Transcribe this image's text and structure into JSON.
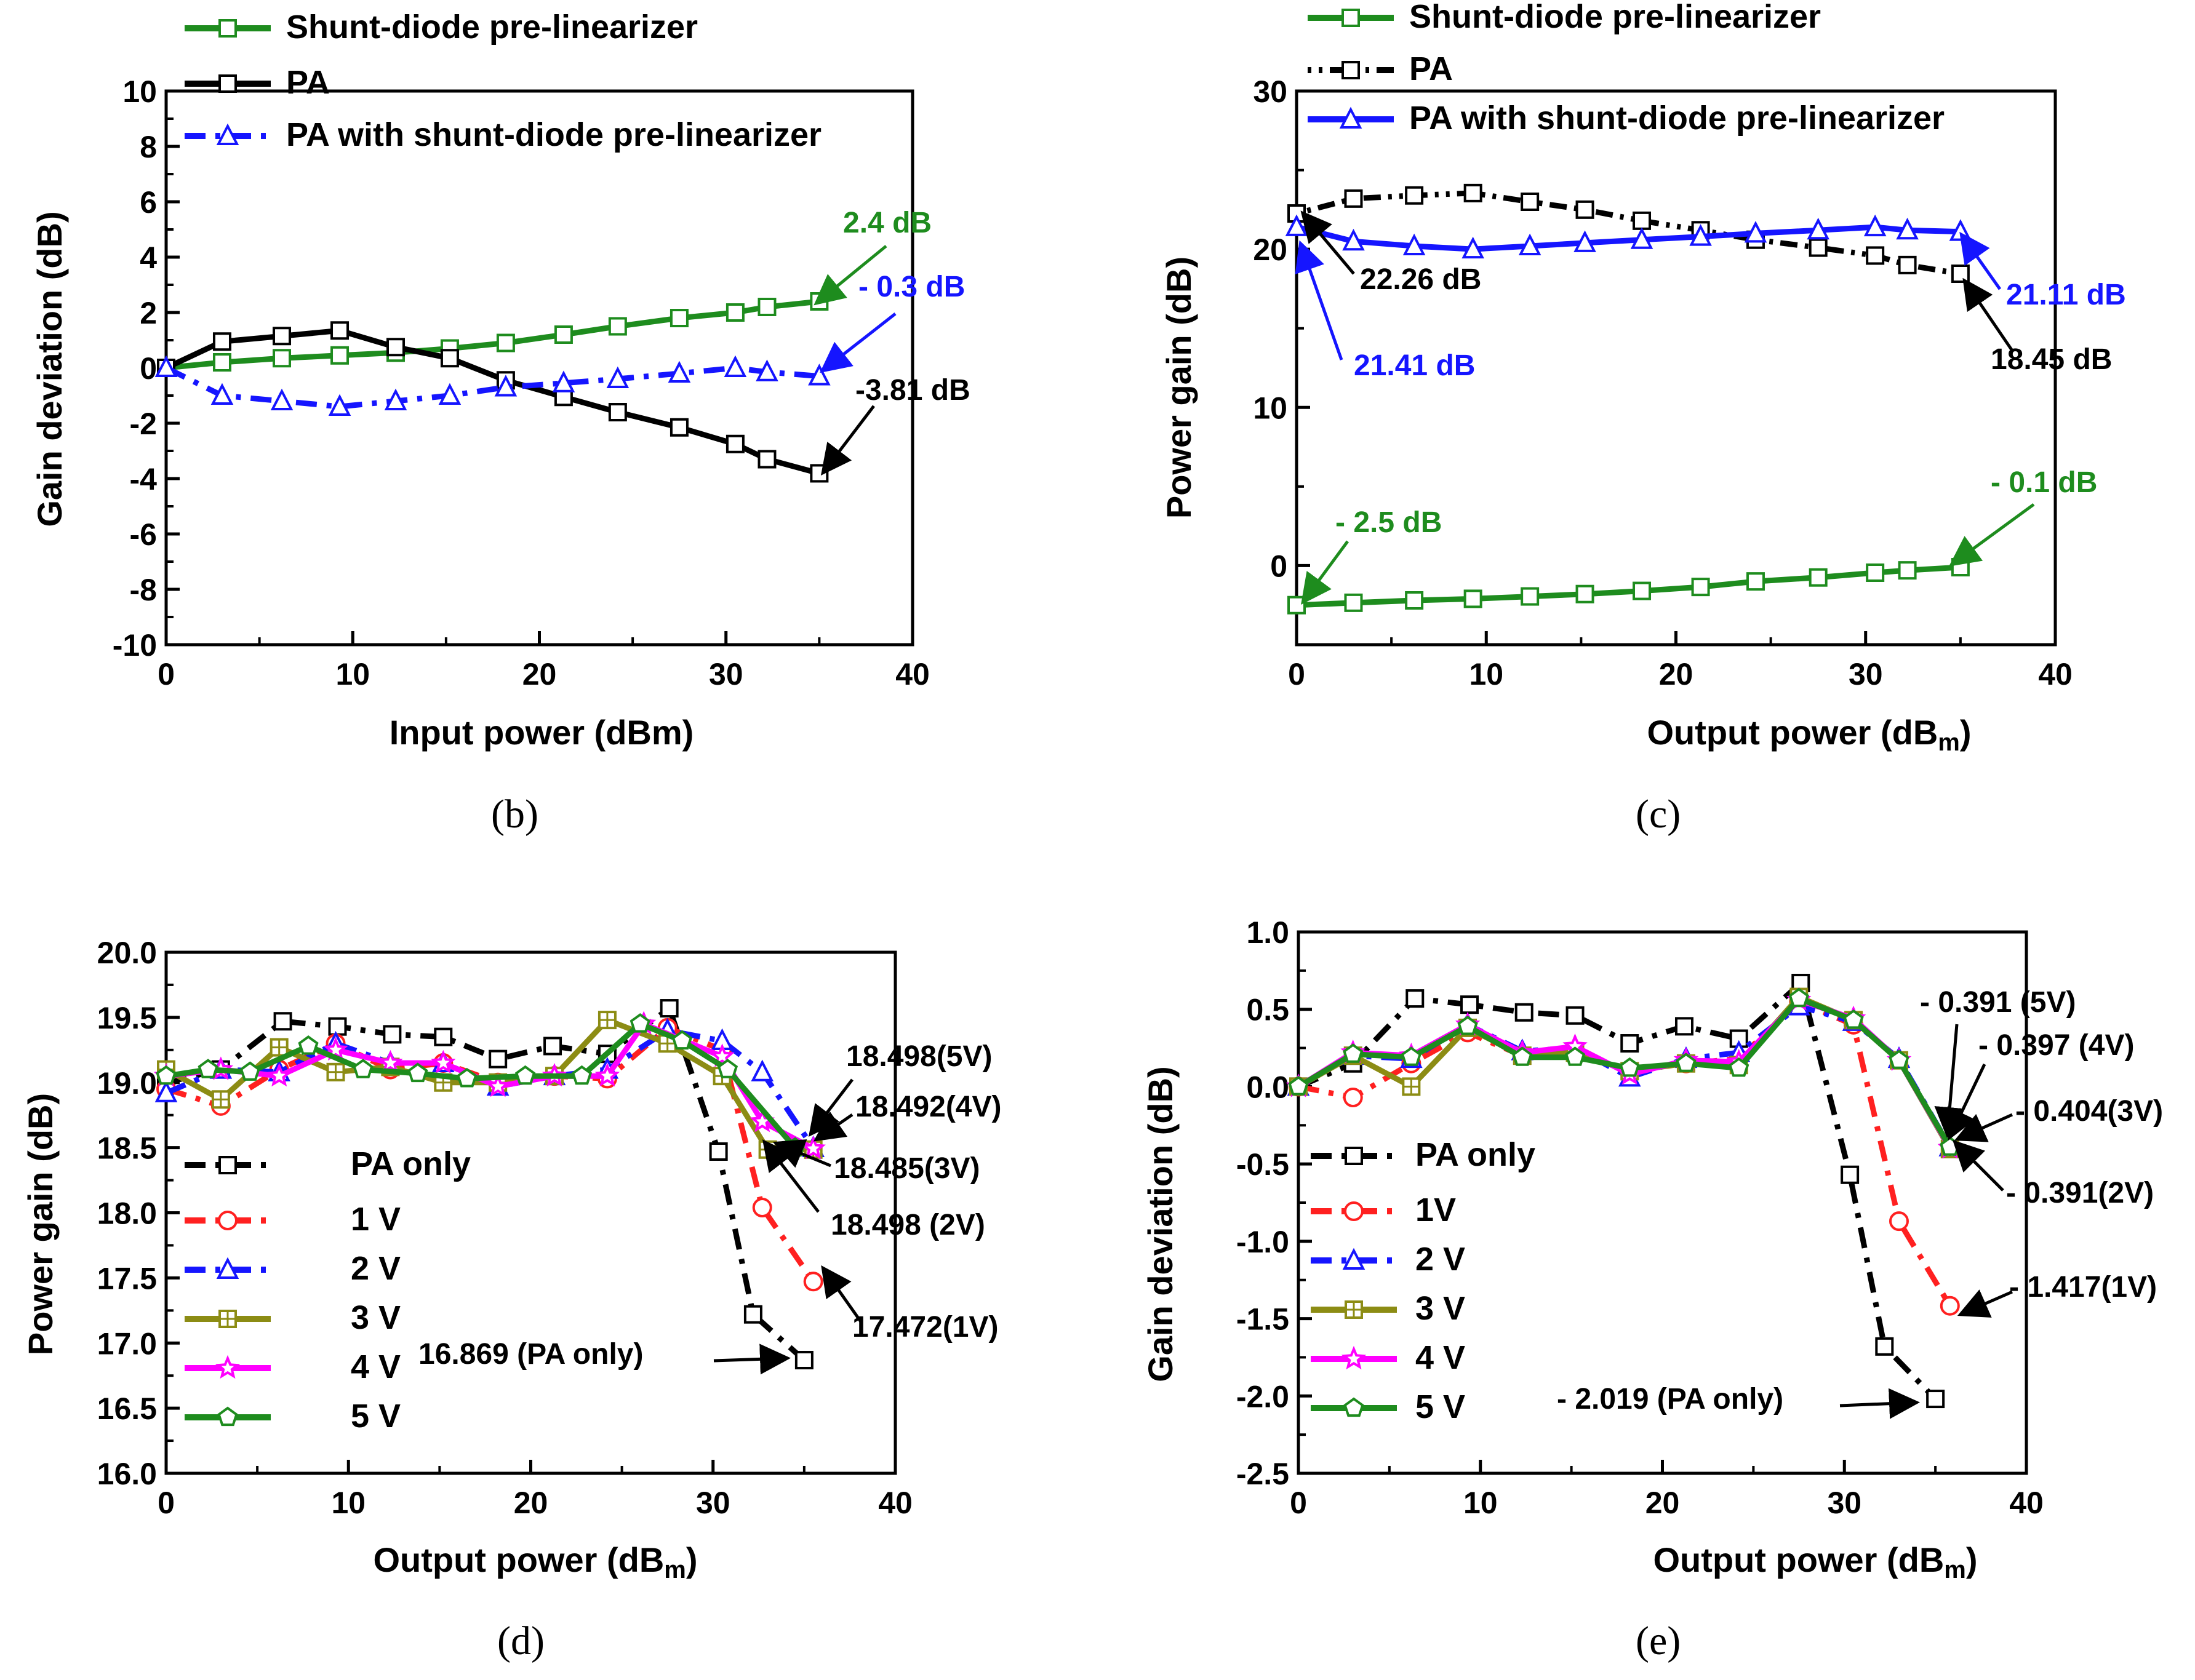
{
  "colors": {
    "pa": "#000000",
    "diode": "#1e8c1e",
    "combined": "#1515ff",
    "v1": "#ff2020",
    "v2": "#1515ff",
    "v3": "#8c8c14",
    "v4": "#ff00ff",
    "v5": "#1e8c1e",
    "marker_fill": "#ffffff"
  },
  "chart_data": [
    {
      "id": "b",
      "type": "line",
      "caption": "(b)",
      "xlabel": "Input power (dBm)",
      "ylabel": "Gain deviation (dB)",
      "xlim": [
        0,
        40
      ],
      "ylim": [
        -10,
        10
      ],
      "xticks": [
        "0",
        "10",
        "20",
        "30",
        "40"
      ],
      "yticks": [
        "-10",
        "-8",
        "-6",
        "-4",
        "-2",
        "0",
        "2",
        "4",
        "6",
        "8",
        "10"
      ],
      "x": [
        0,
        3,
        6.2,
        9.3,
        12.3,
        15.2,
        18.2,
        21.3,
        24.2,
        27.5,
        30.5,
        32.2,
        35
      ],
      "series": [
        {
          "name": "Shunt-diode pre-linearizer",
          "color_key": "diode",
          "marker": "square",
          "dash": "solid",
          "values": [
            0,
            0.2,
            0.35,
            0.45,
            0.55,
            0.7,
            0.9,
            1.2,
            1.5,
            1.8,
            2.0,
            2.2,
            2.4
          ]
        },
        {
          "name": "PA",
          "color_key": "pa",
          "marker": "square",
          "dash": "solid",
          "values": [
            0,
            0.95,
            1.15,
            1.35,
            0.75,
            0.35,
            -0.45,
            -1.05,
            -1.6,
            -2.15,
            -2.75,
            -3.3,
            -3.81
          ]
        },
        {
          "name": "PA with shunt-diode pre-linearizer",
          "color_key": "combined",
          "marker": "triangle",
          "dash": "dashdot",
          "values": [
            0,
            -1.0,
            -1.2,
            -1.4,
            -1.2,
            -1.0,
            -0.7,
            -0.55,
            -0.4,
            -0.2,
            0.0,
            -0.15,
            -0.3
          ]
        }
      ],
      "annotations": [
        {
          "text": "2.4 dB",
          "color_key": "diode"
        },
        {
          "text": "- 0.3 dB",
          "color_key": "combined"
        },
        {
          "text": "-3.81 dB",
          "color_key": "pa"
        }
      ]
    },
    {
      "id": "c",
      "type": "line",
      "caption": "(c)",
      "xlabel": "Output power (dB",
      "xlabel_sub": "m",
      "xlabel_tail": ")",
      "ylabel": "Power gain (dB)",
      "xlim": [
        0,
        40
      ],
      "ylim": [
        -5,
        30
      ],
      "xticks": [
        "0",
        "10",
        "20",
        "30",
        "40"
      ],
      "yticks": [
        "0",
        "10",
        "20",
        "30"
      ],
      "x": [
        0,
        3,
        6.2,
        9.3,
        12.3,
        15.2,
        18.2,
        21.3,
        24.2,
        27.5,
        30.5,
        32.2,
        35
      ],
      "series": [
        {
          "name": "Shunt-diode pre-linearizer",
          "color_key": "diode",
          "marker": "square",
          "dash": "solid",
          "values": [
            -2.5,
            -2.35,
            -2.2,
            -2.1,
            -1.95,
            -1.8,
            -1.6,
            -1.35,
            -1.0,
            -0.75,
            -0.45,
            -0.3,
            -0.1
          ]
        },
        {
          "name": "PA",
          "color_key": "pa",
          "marker": "square",
          "dash": "dashdotdot",
          "values": [
            22.26,
            23.2,
            23.4,
            23.55,
            23.0,
            22.5,
            21.8,
            21.2,
            20.6,
            20.1,
            19.6,
            19.0,
            18.45
          ]
        },
        {
          "name": "PA with shunt-diode pre-linearizer",
          "color_key": "combined",
          "marker": "triangle",
          "dash": "solid",
          "values": [
            21.41,
            20.5,
            20.2,
            20.0,
            20.2,
            20.4,
            20.6,
            20.8,
            21.0,
            21.2,
            21.4,
            21.2,
            21.11
          ]
        }
      ],
      "annotations": [
        {
          "text": "22.26 dB",
          "color_key": "pa"
        },
        {
          "text": "21.41 dB",
          "color_key": "combined"
        },
        {
          "text": "21.11 dB",
          "color_key": "combined"
        },
        {
          "text": "18.45 dB",
          "color_key": "pa"
        },
        {
          "text": "- 2.5 dB",
          "color_key": "diode"
        },
        {
          "text": "- 0.1 dB",
          "color_key": "diode"
        }
      ]
    },
    {
      "id": "d",
      "type": "line",
      "caption": "(d)",
      "xlabel": "Output power (dB",
      "xlabel_sub": "m",
      "xlabel_tail": ")",
      "ylabel": "Power gain (dB)",
      "xlim": [
        0,
        40
      ],
      "ylim": [
        16.0,
        20.0
      ],
      "xticks": [
        "0",
        "10",
        "20",
        "30",
        "40"
      ],
      "yticks": [
        "16.0",
        "16.5",
        "17.0",
        "17.5",
        "18.0",
        "18.5",
        "19.0",
        "19.5",
        "20.0"
      ],
      "series": [
        {
          "name": "PA only",
          "color_key": "pa",
          "marker": "square",
          "dash": "dashdot",
          "x": [
            0,
            3,
            6.4,
            9.4,
            12.4,
            15.2,
            18.2,
            21.2,
            24.2,
            27.6,
            30.3,
            32.2,
            35
          ],
          "values": [
            19.0,
            19.1,
            19.47,
            19.43,
            19.37,
            19.35,
            19.18,
            19.28,
            19.22,
            19.57,
            18.47,
            17.22,
            16.869
          ]
        },
        {
          "name": "1 V",
          "color_key": "v1",
          "marker": "circle",
          "dash": "dashdot",
          "x": [
            0,
            3,
            6.2,
            9.3,
            12.3,
            15.2,
            18.2,
            21.3,
            24.2,
            27.5,
            30.5,
            32.7,
            35.5
          ],
          "values": [
            18.95,
            18.82,
            19.1,
            19.3,
            19.1,
            19.15,
            19.0,
            19.05,
            19.03,
            19.42,
            19.25,
            18.04,
            17.472
          ]
        },
        {
          "name": "2 V",
          "color_key": "v2",
          "marker": "triangle",
          "dash": "dashdot",
          "x": [
            0,
            3,
            6.2,
            9.3,
            12.3,
            15.2,
            18.2,
            21.3,
            24.2,
            27.5,
            30.5,
            32.7,
            35.5
          ],
          "values": [
            18.92,
            19.1,
            19.08,
            19.3,
            19.15,
            19.15,
            18.97,
            19.05,
            19.1,
            19.4,
            19.32,
            19.08,
            18.498
          ]
        },
        {
          "name": "3 V",
          "color_key": "v3",
          "marker": "square-cross",
          "dash": "solid",
          "x": [
            0,
            3,
            6.2,
            9.3,
            12.3,
            15.2,
            18.2,
            21.3,
            24.2,
            27.5,
            30.5,
            33.0,
            35.5
          ],
          "values": [
            19.1,
            18.87,
            19.27,
            19.08,
            19.12,
            19.0,
            19.0,
            19.05,
            19.48,
            19.3,
            19.05,
            18.485,
            18.485
          ]
        },
        {
          "name": "4 V",
          "color_key": "v4",
          "marker": "star",
          "dash": "solid",
          "x": [
            0,
            3,
            6.2,
            9.3,
            12.3,
            15.2,
            18.2,
            21.3,
            24.2,
            26.2,
            30.5,
            32.7,
            35.5
          ],
          "values": [
            19.05,
            19.1,
            19.05,
            19.25,
            19.15,
            19.15,
            18.97,
            19.05,
            19.05,
            19.45,
            19.2,
            18.7,
            18.492
          ]
        },
        {
          "name": "5 V",
          "color_key": "v5",
          "marker": "pentagon",
          "dash": "solid",
          "x": [
            0,
            2.3,
            4.6,
            7.8,
            10.8,
            13.8,
            16.5,
            19.7,
            22.8,
            26.0,
            28.3,
            30.8,
            34.5
          ],
          "values": [
            19.05,
            19.1,
            19.08,
            19.28,
            19.1,
            19.07,
            19.03,
            19.05,
            19.05,
            19.45,
            19.32,
            19.1,
            18.498
          ]
        }
      ],
      "annotations": [
        {
          "text": "18.498(5V)",
          "color_key": "pa"
        },
        {
          "text": "18.492(4V)",
          "color_key": "pa"
        },
        {
          "text": "18.485(3V)",
          "color_key": "pa"
        },
        {
          "text": "18.498 (2V)",
          "color_key": "pa"
        },
        {
          "text": "17.472(1V)",
          "color_key": "pa"
        },
        {
          "text": "16.869 (PA only)",
          "color_key": "pa"
        }
      ]
    },
    {
      "id": "e",
      "type": "line",
      "caption": "(e)",
      "xlabel": "Output power (dB",
      "xlabel_sub": "m",
      "xlabel_tail": ")",
      "ylabel": "Gain deviation (dB)",
      "xlim": [
        0,
        40
      ],
      "ylim": [
        -2.5,
        1.0
      ],
      "xticks": [
        "0",
        "10",
        "20",
        "30",
        "40"
      ],
      "yticks": [
        "-2.5",
        "-2.0",
        "-1.5",
        "-1.0",
        "-0.5",
        "0.0",
        "0.5",
        "1.0"
      ],
      "series": [
        {
          "name": "PA only",
          "color_key": "pa",
          "marker": "square",
          "dash": "dashdot",
          "x": [
            0,
            3,
            6.4,
            9.4,
            12.4,
            15.2,
            18.2,
            21.2,
            24.2,
            27.6,
            30.3,
            32.2,
            35
          ],
          "values": [
            0.0,
            0.15,
            0.57,
            0.53,
            0.48,
            0.46,
            0.28,
            0.39,
            0.31,
            0.67,
            -0.57,
            -1.68,
            -2.019
          ]
        },
        {
          "name": "1V",
          "color_key": "v1",
          "marker": "circle",
          "dash": "dashdot",
          "x": [
            0,
            3,
            6.2,
            9.3,
            12.3,
            15.2,
            18.2,
            21.3,
            24.2,
            27.5,
            30.5,
            33.0,
            35.8
          ],
          "values": [
            0.0,
            -0.07,
            0.15,
            0.35,
            0.2,
            0.22,
            0.1,
            0.15,
            0.18,
            0.55,
            0.4,
            -0.87,
            -1.417
          ]
        },
        {
          "name": "2 V",
          "color_key": "v2",
          "marker": "triangle",
          "dash": "dashdot",
          "x": [
            0,
            3,
            6.2,
            9.3,
            12.3,
            15.2,
            18.2,
            21.3,
            24.2,
            27.5,
            30.5,
            33.0,
            35.8
          ],
          "values": [
            0.0,
            0.2,
            0.18,
            0.4,
            0.23,
            0.25,
            0.06,
            0.18,
            0.22,
            0.52,
            0.42,
            0.18,
            -0.391
          ]
        },
        {
          "name": "3 V",
          "color_key": "v3",
          "marker": "square-cross",
          "dash": "solid",
          "x": [
            0,
            3,
            6.2,
            9.3,
            12.3,
            15.2,
            18.2,
            21.3,
            24.2,
            27.5,
            30.5,
            33.0,
            35.8
          ],
          "values": [
            0.0,
            0.2,
            0.0,
            0.38,
            0.2,
            0.22,
            0.1,
            0.15,
            0.14,
            0.58,
            0.43,
            0.17,
            -0.404
          ]
        },
        {
          "name": "4 V",
          "color_key": "v4",
          "marker": "star",
          "dash": "solid",
          "x": [
            0,
            3,
            6.2,
            9.3,
            12.3,
            15.2,
            18.2,
            21.3,
            24.2,
            27.5,
            30.5,
            33.0,
            35.8
          ],
          "values": [
            0.0,
            0.22,
            0.2,
            0.4,
            0.22,
            0.26,
            0.08,
            0.17,
            0.16,
            0.56,
            0.44,
            0.17,
            -0.397
          ]
        },
        {
          "name": "5 V",
          "color_key": "v5",
          "marker": "pentagon",
          "dash": "solid",
          "x": [
            0,
            3,
            6.2,
            9.3,
            12.3,
            15.2,
            18.2,
            21.3,
            24.2,
            27.5,
            30.5,
            33.0,
            35.8
          ],
          "values": [
            0.0,
            0.21,
            0.19,
            0.39,
            0.19,
            0.19,
            0.12,
            0.15,
            0.12,
            0.57,
            0.43,
            0.17,
            -0.391
          ]
        }
      ],
      "annotations": [
        {
          "text": "- 0.391 (5V)",
          "color_key": "pa"
        },
        {
          "text": "- 0.397 (4V)",
          "color_key": "pa"
        },
        {
          "text": "- 0.404(3V)",
          "color_key": "pa"
        },
        {
          "text": "- 0.391(2V)",
          "color_key": "pa"
        },
        {
          "text": "- 1.417(1V)",
          "color_key": "pa"
        },
        {
          "text": "- 2.019 (PA only)",
          "color_key": "pa"
        }
      ]
    }
  ]
}
